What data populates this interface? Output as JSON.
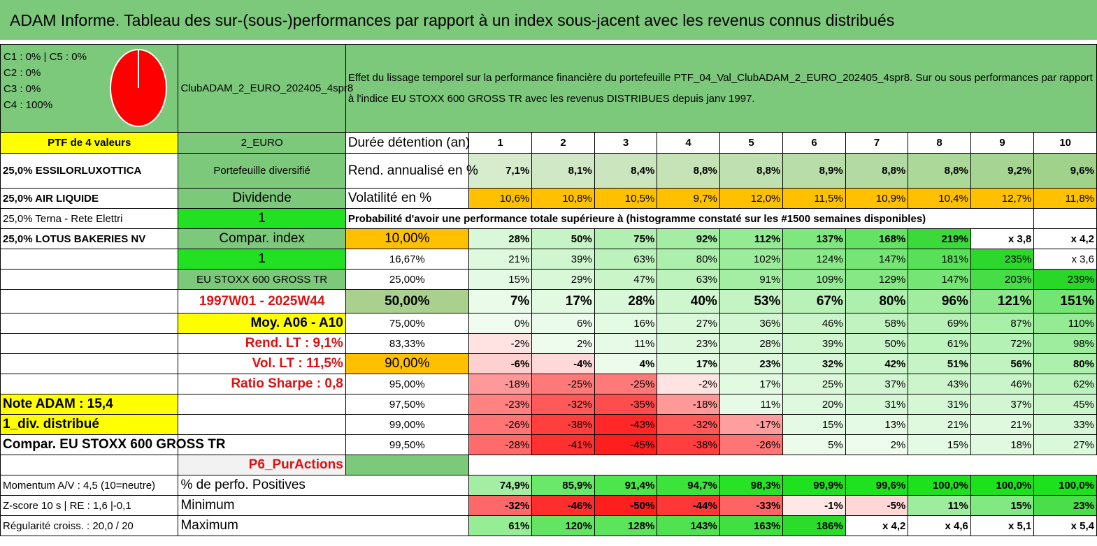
{
  "title": "ADAM Informe. Tableau des sur-(sous-)performances par rapport à un index sous-jacent avec les revenus connus distribués",
  "header": {
    "legend": [
      "C1 : 0% | C5 : 0%",
      "C2 : 0%",
      "C3 : 0%",
      "C4 : 100%"
    ],
    "portfolio_name": "ClubADAM_2_EURO_202405_4spr8",
    "description": "Effet du lissage temporel sur la performance financière du portefeuille PTF_04_Val_ClubADAM_2_EURO_202405_4spr8. Sur ou sous performances par rapport à l'indice EU STOXX 600 GROSS TR avec les revenus DISTRIBUES depuis janv 1997."
  },
  "left": {
    "ptf_count": "PTF de 4 valeurs",
    "holdings": [
      "25,0% ESSILORLUXOTTICA",
      "25,0% AIR LIQUIDE",
      "25,0% Terna - Rete Elettri",
      "25,0% LOTUS BAKERIES NV"
    ],
    "note_adam": "Note ADAM : 15,4",
    "div_distribue": "1_div. distribué",
    "compar": "Compar. EU STOXX 600 GROSS TR",
    "momentum": "Momentum A/V : 4,5 (10=neutre)",
    "zscore": "Z-score 10 s | RE : 1,6 |-0,1",
    "regularite": "Régularité croiss. : 20,0 / 20"
  },
  "mid": {
    "currency": "2_EURO",
    "diversified": "Portefeuille diversifié",
    "dividende": "Dividende",
    "one_a": "1",
    "compar_index": "Compar. index",
    "one_b": "1",
    "index_name": "EU STOXX 600 GROSS TR",
    "period": "1997W01 - 2025W44",
    "moy": "Moy. A06 - A10",
    "rend_lt": "Rend. LT : 9,1%",
    "vol_lt": "Vol. LT : 11,5%",
    "sharpe": "Ratio Sharpe : 0,8",
    "p6": "P6_PurActions"
  },
  "duration_label": "Durée détention (an)",
  "years": [
    "1",
    "2",
    "3",
    "4",
    "5",
    "6",
    "7",
    "8",
    "9",
    "10"
  ],
  "rend_label": "Rend. annualisé en %",
  "rend": [
    "7,1%",
    "8,1%",
    "8,4%",
    "8,8%",
    "8,8%",
    "8,9%",
    "8,8%",
    "8,8%",
    "9,2%",
    "9,6%"
  ],
  "vol_label": "Volatilité en %",
  "vol": [
    "10,6%",
    "10,8%",
    "10,5%",
    "9,7%",
    "12,0%",
    "11,5%",
    "10,9%",
    "10,4%",
    "12,7%",
    "11,8%"
  ],
  "prob_label": "Probabilité d'avoir une performance totale supérieure à (histogramme constaté sur les #1500 semaines disponibles)",
  "perc_rows": [
    {
      "p": "10,00%",
      "v": [
        "28%",
        "50%",
        "75%",
        "92%",
        "112%",
        "137%",
        "168%",
        "219%",
        "x 3,8",
        "x 4,2"
      ]
    },
    {
      "p": "16,67%",
      "v": [
        "21%",
        "39%",
        "63%",
        "80%",
        "102%",
        "124%",
        "147%",
        "181%",
        "235%",
        "x 3,6"
      ]
    },
    {
      "p": "25,00%",
      "v": [
        "15%",
        "29%",
        "47%",
        "63%",
        "91%",
        "109%",
        "129%",
        "147%",
        "203%",
        "239%"
      ]
    },
    {
      "p": "50,00%",
      "v": [
        "7%",
        "17%",
        "28%",
        "40%",
        "53%",
        "67%",
        "80%",
        "96%",
        "121%",
        "151%"
      ]
    },
    {
      "p": "75,00%",
      "v": [
        "0%",
        "6%",
        "16%",
        "27%",
        "36%",
        "46%",
        "58%",
        "69%",
        "87%",
        "110%"
      ]
    },
    {
      "p": "83,33%",
      "v": [
        "-2%",
        "2%",
        "11%",
        "23%",
        "28%",
        "39%",
        "50%",
        "61%",
        "72%",
        "98%"
      ]
    },
    {
      "p": "90,00%",
      "v": [
        "-6%",
        "-4%",
        "4%",
        "17%",
        "23%",
        "32%",
        "42%",
        "51%",
        "56%",
        "80%"
      ]
    },
    {
      "p": "95,00%",
      "v": [
        "-18%",
        "-25%",
        "-25%",
        "-2%",
        "17%",
        "25%",
        "37%",
        "43%",
        "46%",
        "62%"
      ]
    },
    {
      "p": "97,50%",
      "v": [
        "-23%",
        "-32%",
        "-35%",
        "-18%",
        "11%",
        "20%",
        "31%",
        "31%",
        "37%",
        "45%"
      ]
    },
    {
      "p": "99,00%",
      "v": [
        "-26%",
        "-38%",
        "-43%",
        "-32%",
        "-17%",
        "15%",
        "13%",
        "21%",
        "21%",
        "33%"
      ]
    },
    {
      "p": "99,50%",
      "v": [
        "-28%",
        "-41%",
        "-45%",
        "-38%",
        "-26%",
        "5%",
        "2%",
        "15%",
        "18%",
        "27%"
      ]
    }
  ],
  "pos_label": "% de perfo. Positives",
  "pos": [
    "74,9%",
    "85,9%",
    "91,4%",
    "94,7%",
    "98,3%",
    "99,9%",
    "99,6%",
    "100,0%",
    "100,0%",
    "100,0%"
  ],
  "min_label": "Minimum",
  "min": [
    "-32%",
    "-46%",
    "-50%",
    "-44%",
    "-33%",
    "-1%",
    "-5%",
    "11%",
    "15%",
    "23%"
  ],
  "max_label": "Maximum",
  "max": [
    "61%",
    "120%",
    "128%",
    "143%",
    "163%",
    "186%",
    "x 4,2",
    "x 4,6",
    "x 5,1",
    "x 5,4"
  ],
  "colors": {
    "header_green": "#7dc97b",
    "yellow": "#ffff00",
    "bright_green": "#22e022",
    "orange": "#ffc000",
    "red": "#e01010"
  }
}
